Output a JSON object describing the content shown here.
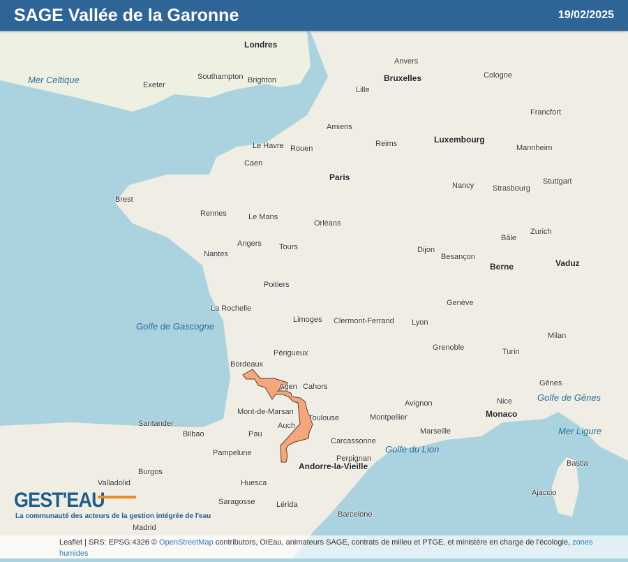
{
  "header": {
    "title": "SAGE Vallée de la Garonne",
    "date": "19/02/2025"
  },
  "colors": {
    "header": "#2f6496",
    "sage_fill": "#f4a77c",
    "sage_stroke": "#5a3a2a",
    "sea": "#aad3df",
    "land": "#f0ede4"
  },
  "map": {
    "cities": [
      {
        "name": "Paris",
        "big": true
      },
      {
        "name": "Londres",
        "big": true
      },
      {
        "name": "Bruxelles",
        "big": true
      },
      {
        "name": "Luxembourg",
        "big": true
      },
      {
        "name": "Berne",
        "big": true
      },
      {
        "name": "Monaco",
        "big": true
      },
      {
        "name": "Andorre-la-Vieille",
        "big": true
      },
      {
        "name": "Vaduz",
        "big": true
      },
      {
        "name": "Bordeaux"
      },
      {
        "name": "Toulouse"
      },
      {
        "name": "Lyon"
      },
      {
        "name": "Marseille"
      },
      {
        "name": "Nantes"
      },
      {
        "name": "Rennes"
      },
      {
        "name": "Brest"
      },
      {
        "name": "Lille"
      },
      {
        "name": "Strasbourg"
      },
      {
        "name": "Limoges"
      },
      {
        "name": "Clermont-Ferrand"
      },
      {
        "name": "Montpellier"
      },
      {
        "name": "Perpignan"
      },
      {
        "name": "Pau"
      },
      {
        "name": "Auch"
      },
      {
        "name": "Agen"
      },
      {
        "name": "Cahors"
      },
      {
        "name": "Poitiers"
      },
      {
        "name": "Tours"
      },
      {
        "name": "Orléans"
      },
      {
        "name": "Dijon"
      },
      {
        "name": "Besançon"
      },
      {
        "name": "Grenoble"
      },
      {
        "name": "Nancy"
      },
      {
        "name": "Reims"
      },
      {
        "name": "Rouen"
      },
      {
        "name": "Caen"
      },
      {
        "name": "Le Havre"
      },
      {
        "name": "Amiens"
      },
      {
        "name": "Le Mans"
      },
      {
        "name": "Angers"
      },
      {
        "name": "La Rochelle"
      },
      {
        "name": "Périgueux"
      },
      {
        "name": "Mont-de-Marsan"
      },
      {
        "name": "Carcassonne"
      },
      {
        "name": "Nice"
      },
      {
        "name": "Avignon"
      },
      {
        "name": "Genève"
      },
      {
        "name": "Bâle"
      },
      {
        "name": "Barcelone"
      },
      {
        "name": "Saragosse"
      },
      {
        "name": "Pampelune"
      },
      {
        "name": "Santander"
      },
      {
        "name": "Bilbao"
      },
      {
        "name": "Valladolid"
      },
      {
        "name": "Burgos"
      },
      {
        "name": "Madrid"
      },
      {
        "name": "Gênes"
      },
      {
        "name": "Turin"
      },
      {
        "name": "Milan"
      },
      {
        "name": "Southampton"
      },
      {
        "name": "Brighton"
      },
      {
        "name": "Exeter"
      },
      {
        "name": "Anvers"
      },
      {
        "name": "Cologne"
      },
      {
        "name": "Francfort"
      },
      {
        "name": "Stuttgart"
      },
      {
        "name": "Mannheim"
      },
      {
        "name": "Zurich"
      },
      {
        "name": "Ajaccio"
      },
      {
        "name": "Bastia"
      },
      {
        "name": "Lérida"
      },
      {
        "name": "Huesca"
      }
    ],
    "seas": [
      "Golfe de Gascogne",
      "Golfe du Lion",
      "Mer Celtique",
      "Golfe de Gênes",
      "Mer Ligure"
    ]
  },
  "logo": {
    "name": "GEST'EAU",
    "tagline": "La communauté des acteurs de la gestion intégrée de l'eau"
  },
  "attribution": {
    "prefix": "Leaflet | SRS: EPSG:4326 ©",
    "osm": "OpenStreetMap",
    "rest": "contributors, OIEau, animateurs SAGE, contrats de milieu et PTGE, et ministère en charge de l'écologie,",
    "link": "zones humides"
  }
}
